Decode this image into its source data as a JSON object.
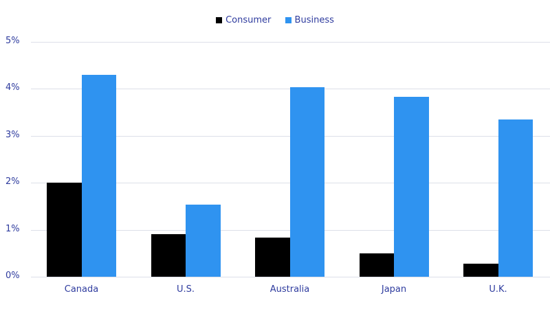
{
  "chart_data": {
    "type": "bar",
    "title": "",
    "xlabel": "",
    "ylabel": "",
    "categories": [
      "Canada",
      "U.S.",
      "Australia",
      "Japan",
      "U.K."
    ],
    "series": [
      {
        "name": "Consumer",
        "color": "#000000",
        "values": [
          2.0,
          0.9,
          0.83,
          0.49,
          0.28
        ]
      },
      {
        "name": "Business",
        "color": "#2f93f0",
        "values": [
          4.3,
          1.54,
          4.04,
          3.83,
          3.35
        ]
      }
    ],
    "ylim": [
      0,
      5
    ],
    "yticks": [
      "0%",
      "1%",
      "2%",
      "3%",
      "4%",
      "5%"
    ],
    "grid": true,
    "legend_position": "top"
  },
  "legend": [
    {
      "label": "Consumer",
      "color": "#000000"
    },
    {
      "label": "Business",
      "color": "#2f93f0"
    }
  ]
}
